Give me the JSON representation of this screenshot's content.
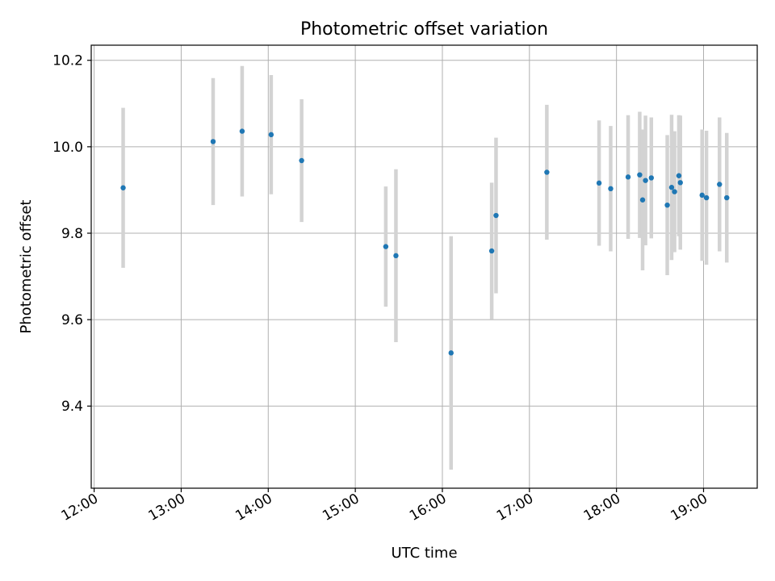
{
  "chart_data": {
    "type": "scatter",
    "title": "Photometric offset variation",
    "xlabel": "UTC time",
    "ylabel": "Photometric offset",
    "xlim": [
      "11:58",
      "19:37"
    ],
    "ylim": [
      9.21,
      10.235
    ],
    "xticks": [
      "12:00",
      "13:00",
      "14:00",
      "15:00",
      "16:00",
      "17:00",
      "18:00",
      "19:00"
    ],
    "yticks": [
      "9.4",
      "9.6",
      "9.8",
      "10.0",
      "10.2"
    ],
    "grid": true,
    "colors": {
      "point": "#1f77b4",
      "errorbar": "#d3d3d3",
      "grid": "#b0b0b0"
    },
    "points": [
      {
        "x": "12:20",
        "y": 9.905,
        "yerr": 0.185
      },
      {
        "x": "13:22",
        "y": 10.012,
        "yerr": 0.147
      },
      {
        "x": "13:42",
        "y": 10.036,
        "yerr": 0.151
      },
      {
        "x": "14:02",
        "y": 10.028,
        "yerr": 0.138
      },
      {
        "x": "14:23",
        "y": 9.968,
        "yerr": 0.142
      },
      {
        "x": "15:21",
        "y": 9.769,
        "yerr": 0.139
      },
      {
        "x": "15:28",
        "y": 9.748,
        "yerr": 0.2
      },
      {
        "x": "16:06",
        "y": 9.523,
        "yerr": 0.27
      },
      {
        "x": "16:34",
        "y": 9.759,
        "yerr": 0.158
      },
      {
        "x": "16:37",
        "y": 9.841,
        "yerr": 0.18
      },
      {
        "x": "17:12",
        "y": 9.941,
        "yerr": 0.156
      },
      {
        "x": "17:48",
        "y": 9.916,
        "yerr": 0.145
      },
      {
        "x": "17:56",
        "y": 9.903,
        "yerr": 0.145
      },
      {
        "x": "18:08",
        "y": 9.93,
        "yerr": 0.143
      },
      {
        "x": "18:16",
        "y": 9.935,
        "yerr": 0.146
      },
      {
        "x": "18:18",
        "y": 9.877,
        "yerr": 0.163
      },
      {
        "x": "18:20",
        "y": 9.922,
        "yerr": 0.15
      },
      {
        "x": "18:24",
        "y": 9.928,
        "yerr": 0.14
      },
      {
        "x": "18:35",
        "y": 9.865,
        "yerr": 0.162
      },
      {
        "x": "18:38",
        "y": 9.906,
        "yerr": 0.168
      },
      {
        "x": "18:40",
        "y": 9.896,
        "yerr": 0.14
      },
      {
        "x": "18:43",
        "y": 9.933,
        "yerr": 0.14
      },
      {
        "x": "18:44",
        "y": 9.917,
        "yerr": 0.155
      },
      {
        "x": "18:59",
        "y": 9.888,
        "yerr": 0.152
      },
      {
        "x": "19:02",
        "y": 9.882,
        "yerr": 0.155
      },
      {
        "x": "19:11",
        "y": 9.913,
        "yerr": 0.155
      },
      {
        "x": "19:16",
        "y": 9.882,
        "yerr": 0.15
      }
    ]
  }
}
